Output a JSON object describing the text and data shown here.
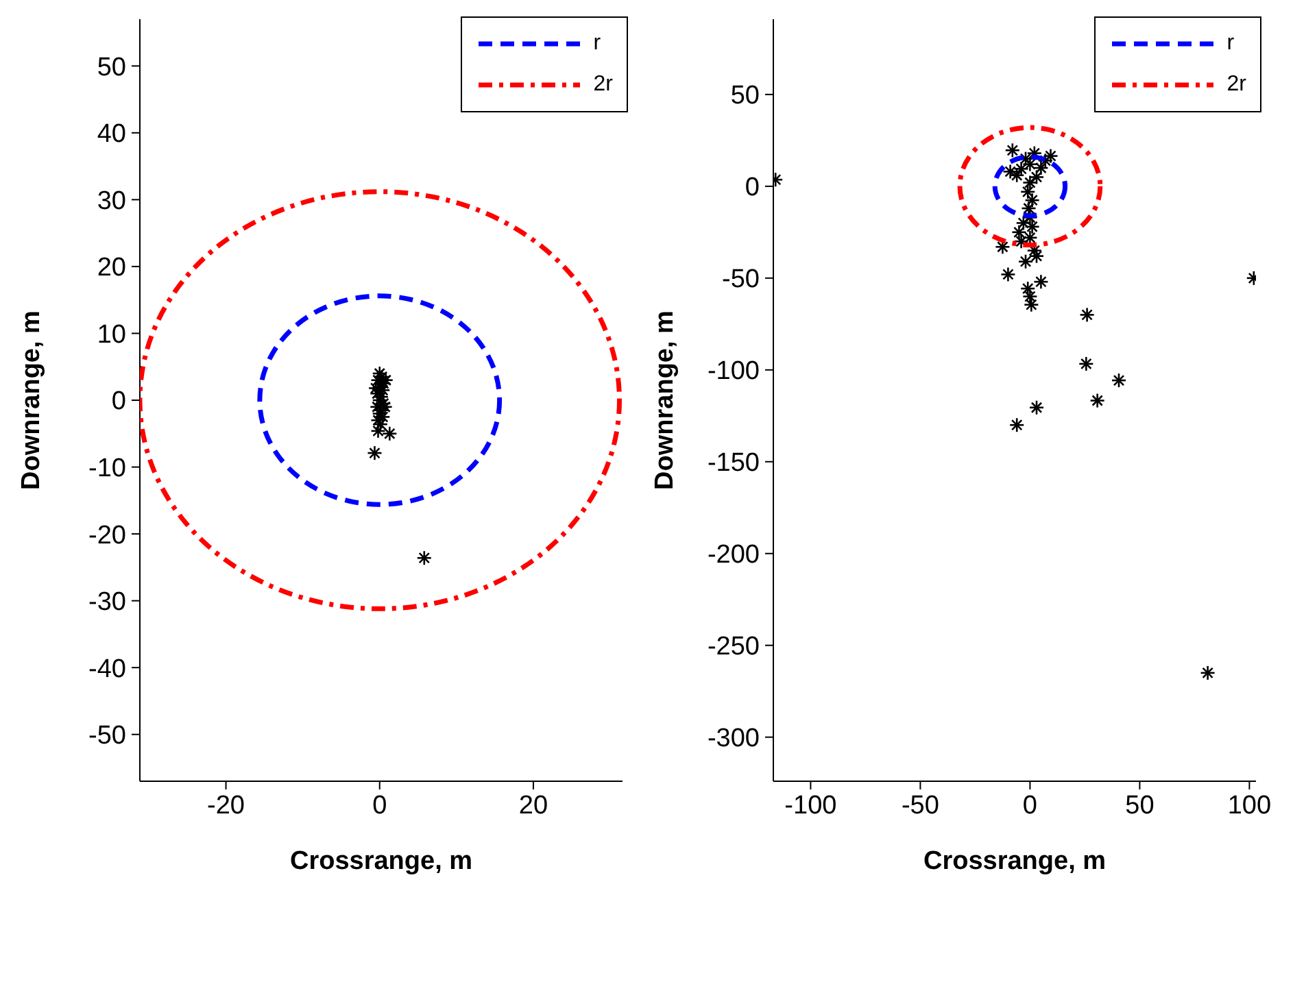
{
  "chart_data": [
    {
      "type": "scatter",
      "xlabel": "Crossrange, m",
      "ylabel": "Downrange, m",
      "xlim": [
        -31.2,
        31.6
      ],
      "xticks": [
        -20,
        0,
        20
      ],
      "ylim": [
        -57,
        57
      ],
      "yticks": [
        -50,
        -40,
        -30,
        -20,
        -10,
        0,
        10,
        20,
        30,
        40,
        50
      ],
      "grid": false,
      "marker": "cross",
      "color": "#000000",
      "x": [
        0,
        0.3,
        -0.2,
        0.5,
        0,
        0.4,
        -0.3,
        0.2,
        0,
        0.5,
        -0.3,
        0.2,
        0,
        0.4,
        -0.2,
        0.8,
        -0.5,
        0.7,
        0.1,
        -0.2,
        1.3,
        -0.65,
        5.8
      ],
      "values": [
        4,
        3.5,
        3,
        2.5,
        2,
        1.5,
        1,
        0.5,
        0,
        -0.5,
        -1,
        -1.5,
        -2,
        -2.5,
        -3,
        3,
        1.8,
        -1,
        -3.6,
        -4.6,
        -5,
        -7.9,
        -23.6
      ],
      "annotations": [
        "r",
        "2r"
      ]
    },
    {
      "type": "scatter",
      "xlabel": "Crossrange, m",
      "ylabel": "Downrange, m",
      "xlim": [
        -117,
        103
      ],
      "xticks": [
        -100,
        -50,
        0,
        50,
        100
      ],
      "ylim": [
        -324,
        91
      ],
      "yticks": [
        -300,
        -250,
        -200,
        -150,
        -100,
        -50,
        0,
        50
      ],
      "grid": false,
      "marker": "cross",
      "color": "#000000",
      "x": [
        -8,
        9.4,
        -4,
        0,
        5,
        -6,
        3,
        -2,
        2,
        -9,
        7,
        0,
        -1,
        1,
        -0.6,
        0,
        -3,
        1,
        -5,
        0,
        -12.5,
        -2,
        2,
        -10,
        5,
        -1,
        0.6,
        0,
        -4,
        3,
        -116,
        102,
        26,
        25.6,
        40.5,
        30.7,
        3,
        -6,
        81
      ],
      "values": [
        19.6,
        16.5,
        9.5,
        12,
        10,
        6,
        5,
        15,
        18,
        8,
        14,
        2,
        -3,
        -7.6,
        -12,
        -17,
        -20,
        -22,
        -25,
        -28,
        -33,
        -41,
        -35,
        -48,
        -52,
        -55.7,
        -64.5,
        -60,
        -30,
        -38,
        3.6,
        -50,
        -70,
        -96.7,
        -105.7,
        -116.7,
        -120.5,
        -130,
        -265
      ],
      "annotations": [
        "r",
        "2r"
      ]
    }
  ]
}
